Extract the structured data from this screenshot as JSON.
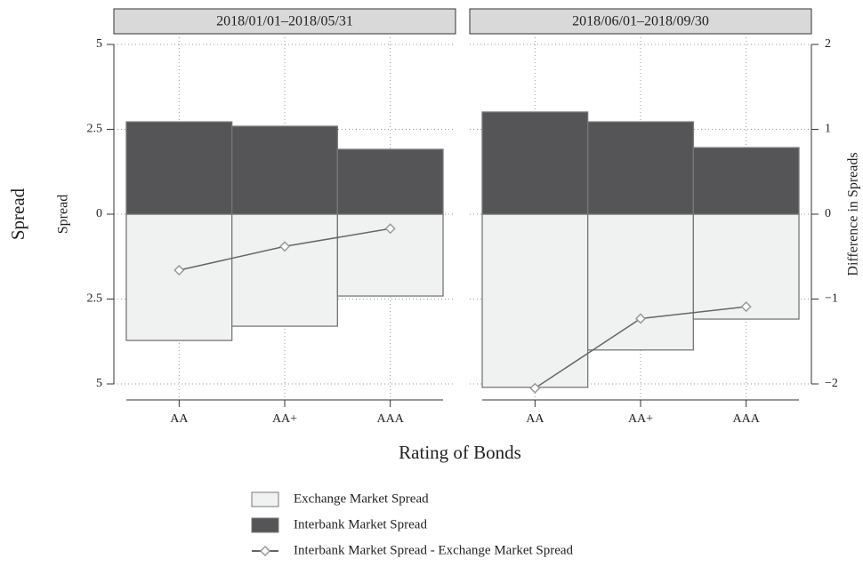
{
  "chart_data": {
    "type": "bar",
    "y_title": "Spread",
    "y_title_inner": "Spread",
    "y2_title": "Difference in Spreads",
    "x_title": "Rating of Bonds",
    "panels": [
      "2018/01/01–2018/05/31",
      "2018/06/01–2018/09/30"
    ],
    "categories": [
      "AA",
      "AA+",
      "AAA"
    ],
    "ylim": [
      -5,
      5
    ],
    "yticks": [
      {
        "value": -5,
        "label": "5"
      },
      {
        "value": -2.5,
        "label": "2.5"
      },
      0,
      2.5,
      5
    ],
    "y2lim": [
      -2,
      2
    ],
    "y2ticks": [
      {
        "value": -2,
        "label": "−2"
      },
      {
        "value": -1,
        "label": "−1"
      },
      0,
      1,
      2
    ],
    "grid": true,
    "series": [
      {
        "name": "Exchange Market Spread",
        "color": "#f0f2f1",
        "values": [
          [
            -3.72,
            -3.3,
            -2.41
          ],
          [
            -5.1,
            -4.0,
            -3.09
          ]
        ]
      },
      {
        "name": "Interbank Market Spread",
        "color": "#555557",
        "values": [
          [
            2.72,
            2.59,
            1.91
          ],
          [
            3.01,
            2.72,
            1.96
          ]
        ]
      },
      {
        "name": "Interbank Market Spread - Exchange Market Spread",
        "color": "#666666",
        "axis": "y2",
        "type": "line",
        "values": [
          [
            -0.66,
            -0.38,
            -0.17
          ],
          [
            -2.05,
            -1.23,
            -1.09
          ]
        ]
      }
    ]
  }
}
